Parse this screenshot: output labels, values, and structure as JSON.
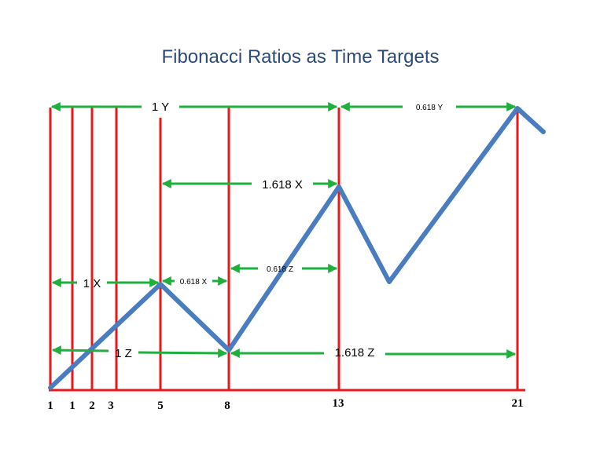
{
  "title": "Fibonacci Ratios as Time Targets",
  "axis_numbers": [
    "1",
    "1",
    "2",
    "3",
    "5",
    "8",
    "13",
    "21"
  ],
  "labels": {
    "one_y": "1 Y",
    "y_0618": "0.618 Y",
    "x_1618": "1.618 X",
    "z_0618": "0.618 Z",
    "one_x": "1 X",
    "x_0618": "0.618 X",
    "one_z": "1 Z",
    "z_1618": "1.618 Z"
  },
  "colors": {
    "title": "#2E4A7A",
    "vertical_lines": "#E8191B",
    "arrows": "#1EAF3C",
    "price_path": "#4A7DBF"
  }
}
